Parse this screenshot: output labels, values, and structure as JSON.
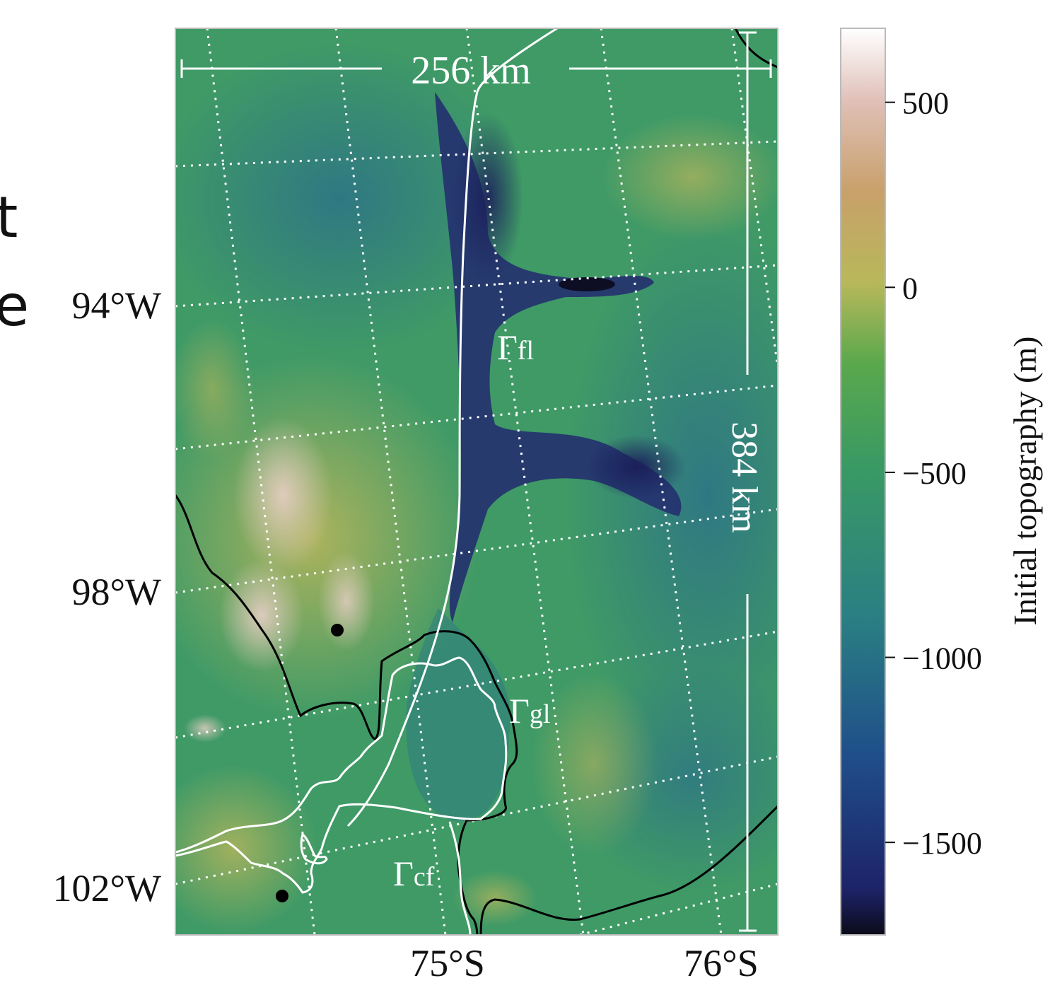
{
  "map": {
    "scale_horizontal": "256 km",
    "scale_vertical": "384 km",
    "lon_labels": [
      "94°W",
      "98°W",
      "102°W"
    ],
    "lat_labels": [
      "75°S",
      "76°S"
    ],
    "contour_labels": [
      {
        "symbol": "Γ",
        "sub": "fl"
      },
      {
        "symbol": "Γ",
        "sub": "gl"
      },
      {
        "symbol": "Γ",
        "sub": "cf"
      }
    ]
  },
  "colorbar": {
    "label": "Initial topography (m)",
    "ticks": [
      500,
      0,
      -500,
      -1000,
      -1500
    ],
    "tick_labels": [
      "500",
      "0",
      "−500",
      "−1000",
      "−1500"
    ],
    "range": [
      -1750,
      700
    ],
    "colormap": "gist_earth",
    "stops": [
      "#0b0b1a",
      "#1e2368",
      "#1f4f8a",
      "#2a7f83",
      "#3a9a63",
      "#5aa84c",
      "#b8b85a",
      "#c8a06a",
      "#e0c0b8",
      "#ffffff"
    ]
  },
  "clipped_text": [
    "t",
    "e"
  ]
}
